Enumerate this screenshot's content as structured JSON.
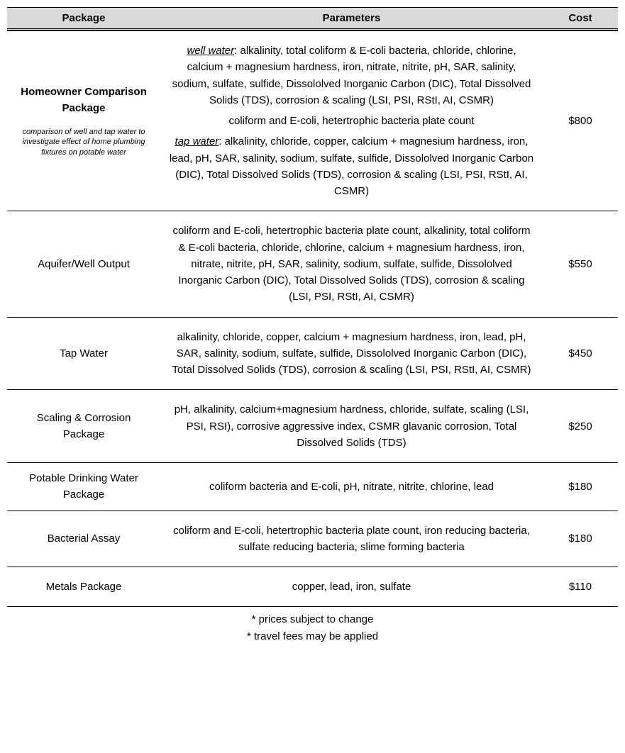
{
  "columns": {
    "package": "Package",
    "parameters": "Parameters",
    "cost": "Cost"
  },
  "rows": [
    {
      "title": "Homeowner Comparison Package",
      "title_bold": true,
      "subtitle": "comparison of well and tap water to investigate effect of home plumbing fixtures on potable water",
      "param_blocks": [
        {
          "label": "well water",
          "text": ": alkalinity, total coliform & E-coli bacteria, chloride, chlorine, calcium + magnesium hardness, iron, nitrate, nitrite, pH, SAR, salinity, sodium, sulfate, sulfide, Dissololved Inorganic Carbon (DIC), Total Dissolved Solids (TDS), corrosion & scaling (LSI, PSI, RStI, AI, CSMR)"
        },
        {
          "label": "",
          "text": "coliform and E-coli, hetertrophic bacteria plate count"
        },
        {
          "label": "tap water",
          "text": ": alkalinity, chloride, copper, calcium + magnesium hardness, iron, lead, pH, SAR, salinity, sodium, sulfate, sulfide, Dissololved Inorganic Carbon (DIC), Total Dissolved Solids (TDS), corrosion & scaling (LSI, PSI, RStI, AI, CSMR)"
        }
      ],
      "cost": "$800"
    },
    {
      "title": "Aquifer/Well Output",
      "param_blocks": [
        {
          "label": "",
          "text": "coliform and E-coli, hetertrophic bacteria plate count, alkalinity, total coliform & E-coli bacteria, chloride, chlorine, calcium + magnesium hardness, iron, nitrate, nitrite, pH, SAR, salinity, sodium, sulfate, sulfide, Dissololved Inorganic Carbon (DIC), Total Dissolved Solids (TDS), corrosion & scaling (LSI, PSI, RStI, AI, CSMR)"
        }
      ],
      "cost": "$550"
    },
    {
      "title": "Tap Water",
      "param_blocks": [
        {
          "label": "",
          "text": "alkalinity, chloride, copper, calcium + magnesium hardness, iron, lead, pH, SAR, salinity, sodium, sulfate, sulfide, Dissololved Inorganic Carbon (DIC), Total Dissolved Solids (TDS), corrosion & scaling (LSI, PSI, RStI, AI, CSMR)"
        }
      ],
      "cost": "$450"
    },
    {
      "title": "Scaling & Corrosion Package",
      "param_blocks": [
        {
          "label": "",
          "text": "pH, alkalinity, calcium+magnesium hardness, chloride, sulfate, scaling (LSI, PSI, RSI), corrosive aggressive index, CSMR glavanic corrosion, Total Dissolved Solids (TDS)"
        }
      ],
      "cost": "$250"
    },
    {
      "title": "Potable Drinking Water Package",
      "param_blocks": [
        {
          "label": "",
          "text": "coliform bacteria and E-coli, pH, nitrate, nitrite, chlorine, lead"
        }
      ],
      "cost": "$180"
    },
    {
      "title": "Bacterial Assay",
      "param_blocks": [
        {
          "label": "",
          "text": "coliform and E-coli, hetertrophic bacteria plate count, iron reducing bacteria, sulfate reducing  bacteria, slime forming bacteria"
        }
      ],
      "cost": "$180"
    },
    {
      "title": "Metals Package",
      "param_blocks": [
        {
          "label": "",
          "text": "copper, lead, iron, sulfate"
        }
      ],
      "cost": "$110"
    }
  ],
  "footnotes": [
    "* prices subject to change",
    "* travel fees may be applied"
  ]
}
